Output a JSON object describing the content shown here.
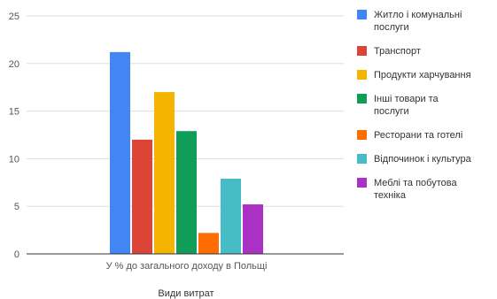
{
  "chart_data": {
    "type": "bar",
    "categories": [
      "У % до загального доходу в Польщі"
    ],
    "series": [
      {
        "name": "Житло і комунальні послуги",
        "values": [
          21.2
        ],
        "color": "#4285F4"
      },
      {
        "name": "Транспорт",
        "values": [
          12.0
        ],
        "color": "#DB4437"
      },
      {
        "name": "Продукти харчування",
        "values": [
          17.0
        ],
        "color": "#F4B400"
      },
      {
        "name": "Інші товари та послуги",
        "values": [
          12.9
        ],
        "color": "#0F9D58"
      },
      {
        "name": "Ресторани та готелі",
        "values": [
          2.2
        ],
        "color": "#FF6D00"
      },
      {
        "name": "Відпочинок і культура",
        "values": [
          7.9
        ],
        "color": "#46BDC6"
      },
      {
        "name": "Меблі та побутова техніка",
        "values": [
          5.2
        ],
        "color": "#AB30C4"
      }
    ],
    "xlabel": "Види витрат",
    "ylabel": "",
    "ylim": [
      0,
      25
    ],
    "yticks": [
      0,
      5,
      10,
      15,
      20,
      25
    ],
    "grid": true,
    "legend": "right"
  }
}
